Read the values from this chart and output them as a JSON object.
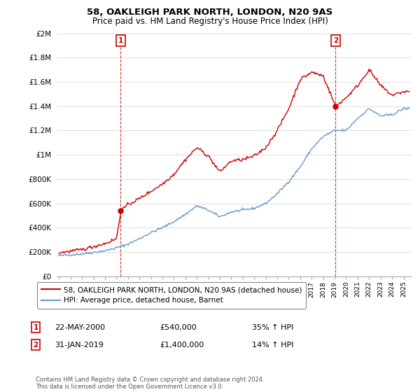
{
  "title": "58, OAKLEIGH PARK NORTH, LONDON, N20 9AS",
  "subtitle": "Price paid vs. HM Land Registry's House Price Index (HPI)",
  "sale1_date": "22-MAY-2000",
  "sale1_price": 540000,
  "sale1_pct": "35%",
  "sale2_date": "31-JAN-2019",
  "sale2_price": 1400000,
  "sale2_pct": "14%",
  "legend_label_red": "58, OAKLEIGH PARK NORTH, LONDON, N20 9AS (detached house)",
  "legend_label_blue": "HPI: Average price, detached house, Barnet",
  "footer": "Contains HM Land Registry data © Crown copyright and database right 2024.\nThis data is licensed under the Open Government Licence v3.0.",
  "red_color": "#cc0000",
  "blue_color": "#6699cc",
  "ylim": [
    0,
    2000000
  ],
  "yticks": [
    0,
    200000,
    400000,
    600000,
    800000,
    1000000,
    1200000,
    1400000,
    1600000,
    1800000,
    2000000
  ],
  "ytick_labels": [
    "£0",
    "£200K",
    "£400K",
    "£600K",
    "£800K",
    "£1M",
    "£1.2M",
    "£1.4M",
    "£1.6M",
    "£1.8M",
    "£2M"
  ],
  "background_color": "#ffffff",
  "grid_color": "#e0e0e0",
  "sale1_x": 2000.375,
  "sale2_x": 2019.083,
  "hpi_key_years": [
    1995,
    1997,
    1999,
    2000,
    2001,
    2002,
    2003,
    2004,
    2005,
    2006,
    2007,
    2008,
    2009,
    2010,
    2011,
    2012,
    2013,
    2014,
    2015,
    2016,
    2017,
    2018,
    2019,
    2020,
    2021,
    2022,
    2023,
    2024,
    2025
  ],
  "hpi_key_vals": [
    170000,
    185000,
    210000,
    235000,
    265000,
    310000,
    360000,
    400000,
    450000,
    510000,
    580000,
    545000,
    490000,
    530000,
    545000,
    560000,
    600000,
    680000,
    780000,
    900000,
    1050000,
    1150000,
    1200000,
    1200000,
    1300000,
    1380000,
    1320000,
    1330000,
    1380000
  ],
  "red_key_years": [
    1995,
    1997,
    1999,
    2000,
    2000.4,
    2001,
    2002,
    2003,
    2004,
    2005,
    2006,
    2007,
    2008,
    2009,
    2010,
    2011,
    2012,
    2013,
    2014,
    2015,
    2016,
    2017,
    2018,
    2019.08,
    2020,
    2021,
    2022,
    2023,
    2024,
    2025
  ],
  "red_key_vals": [
    195000,
    220000,
    270000,
    310000,
    540000,
    590000,
    640000,
    700000,
    760000,
    840000,
    960000,
    1060000,
    990000,
    860000,
    950000,
    960000,
    990000,
    1060000,
    1200000,
    1380000,
    1620000,
    1680000,
    1650000,
    1400000,
    1470000,
    1570000,
    1700000,
    1570000,
    1490000,
    1520000
  ]
}
